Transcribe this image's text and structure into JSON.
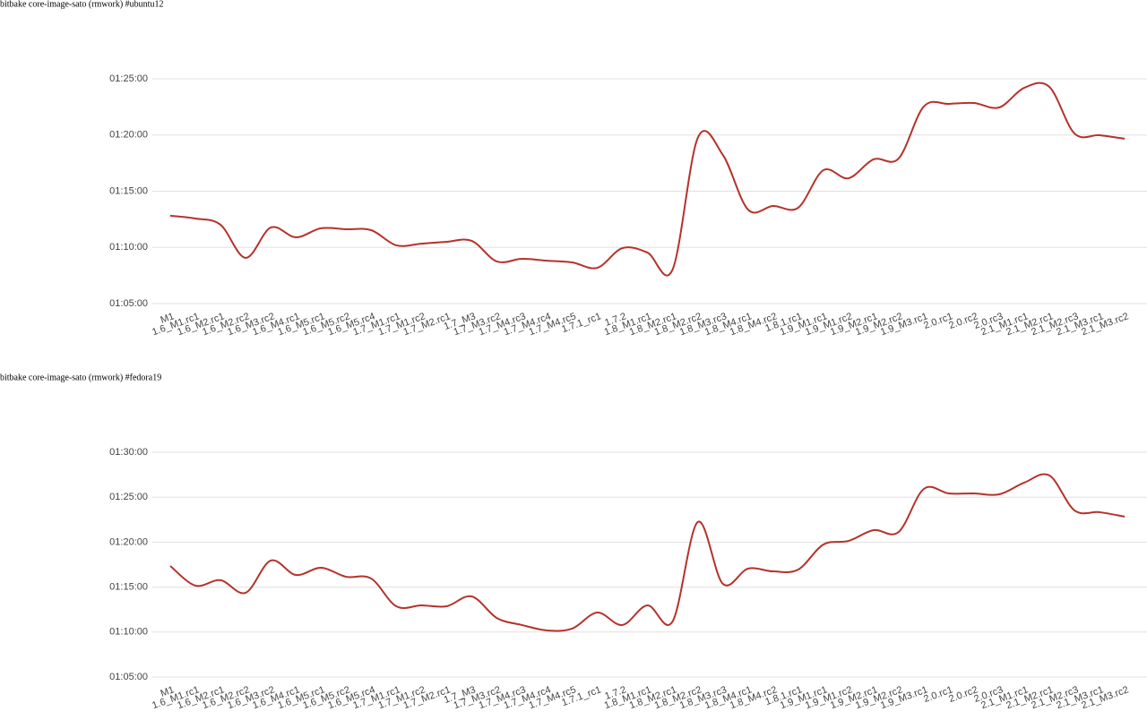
{
  "chart_data": [
    {
      "type": "line",
      "title": "bitbake core-image-sato (rmwork) #ubuntu12",
      "categories": [
        "M1",
        "1.6_M1.rc1",
        "1.6_M2.rc1",
        "1.6_M2.rc2",
        "1.6_M3.rc2",
        "1.6_M4.rc1",
        "1.6_M5.rc1",
        "1.6_M5.rc2",
        "1.6_M5.rc4",
        "1.7_M1.rc1",
        "1.7_M1.rc2",
        "1.7_M2.rc1",
        "1.7_M3",
        "1.7_M3.rc2",
        "1.7_M4.rc3",
        "1.7_M4.rc4",
        "1.7_M4.rc5",
        "1.7.1_rc1",
        "1.7.2",
        "1.8_M1.rc1",
        "1.8_M2.rc1",
        "1.8_M2.rc2",
        "1.8_M3.rc3",
        "1.8_M4.rc1",
        "1.8_M4.rc2",
        "1.8.1.rc1",
        "1.9_M1.rc1",
        "1.9_M1.rc2",
        "1.9_M2.rc1",
        "1.9_M2.rc2",
        "1.9_M3.rc1",
        "2.0.rc1",
        "2.0.rc2",
        "2.0.rc3",
        "2.1_M1.rc1",
        "2.1_M2.rc1",
        "2.1_M2.rc3",
        "2.1_M3.rc1",
        "2.1_M3.rc2"
      ],
      "series": [
        {
          "color": "#b5322b",
          "values": [
            4369,
            4354,
            4321,
            4144,
            4306,
            4254,
            4302,
            4297,
            4292,
            4211,
            4220,
            4230,
            4235,
            4125,
            4139,
            4129,
            4120,
            4091,
            4196,
            4172,
            4082,
            4784,
            4694,
            4402,
            4421,
            4412,
            4612,
            4569,
            4670,
            4675,
            4952,
            4966,
            4971,
            4947,
            5052,
            5057,
            4808,
            4799,
            4780
          ]
        }
      ],
      "ylim": [
        3900,
        5100
      ],
      "yticks": [
        {
          "value": 3900,
          "label": "01:05:00"
        },
        {
          "value": 4200,
          "label": "01:10:00"
        },
        {
          "value": 4500,
          "label": "01:15:00"
        },
        {
          "value": 4800,
          "label": "01:20:00"
        },
        {
          "value": 5100,
          "label": "01:25:00"
        }
      ],
      "grid": true
    },
    {
      "type": "line",
      "title": "bitbake core-image-sato (rmwork) #fedora19",
      "categories": [
        "M1",
        "1.6_M1.rc1",
        "1.6_M2.rc1",
        "1.6_M2.rc2",
        "1.6_M3.rc2",
        "1.6_M4.rc1",
        "1.6_M5.rc1",
        "1.6_M5.rc2",
        "1.6_M5.rc4",
        "1.7_M1.rc1",
        "1.7_M1.rc2",
        "1.7_M2.rc1",
        "1.7_M3",
        "1.7_M3.rc2",
        "1.7_M4.rc3",
        "1.7_M4.rc4",
        "1.7_M4.rc5",
        "1.7.1_rc1",
        "1.7.2",
        "1.8_M1.rc1",
        "1.8_M2.rc1",
        "1.8_M2.rc2",
        "1.8_M3.rc3",
        "1.8_M4.rc1",
        "1.8_M4.rc2",
        "1.8.1.rc1",
        "1.9_M1.rc1",
        "1.9_M1.rc2",
        "1.9_M2.rc1",
        "1.9_M2.rc2",
        "1.9_M3.rc1",
        "2.0.rc1",
        "2.0.rc2",
        "2.0.rc3",
        "2.1_M1.rc1",
        "2.1_M2.rc1",
        "2.1_M2.rc3",
        "2.1_M3.rc1",
        "2.1_M3.rc2"
      ],
      "series": [
        {
          "color": "#b5322b",
          "values": [
            4641,
            4510,
            4546,
            4462,
            4677,
            4581,
            4629,
            4569,
            4557,
            4372,
            4378,
            4372,
            4438,
            4294,
            4247,
            4211,
            4223,
            4330,
            4247,
            4378,
            4271,
            4934,
            4522,
            4623,
            4605,
            4617,
            4784,
            4808,
            4880,
            4868,
            5155,
            5125,
            5125,
            5119,
            5197,
            5245,
            5012,
            5000,
            4970
          ]
        }
      ],
      "ylim": [
        3900,
        5400
      ],
      "yticks": [
        {
          "value": 3900,
          "label": "01:05:00"
        },
        {
          "value": 4200,
          "label": "01:10:00"
        },
        {
          "value": 4500,
          "label": "01:15:00"
        },
        {
          "value": 4800,
          "label": "01:20:00"
        },
        {
          "value": 5100,
          "label": "01:25:00"
        },
        {
          "value": 5400,
          "label": "01:30:00"
        }
      ],
      "grid": true
    }
  ]
}
